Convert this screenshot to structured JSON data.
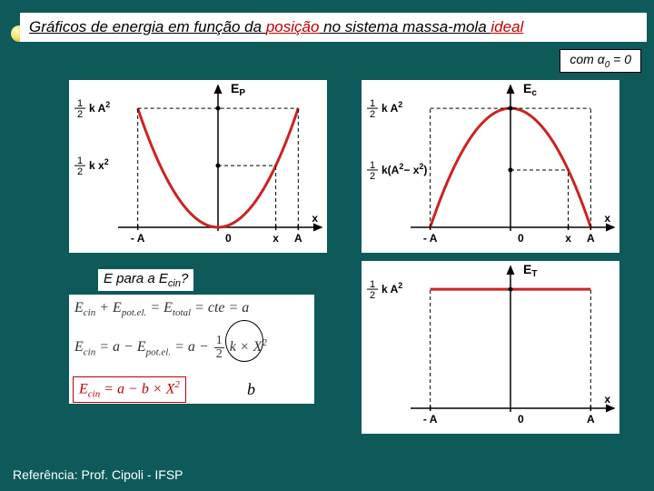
{
  "title": {
    "prefix": "Gráficos de energia em função da ",
    "keyword1": "posição",
    "mid": " no sistema massa-mola ",
    "keyword2": "ideal"
  },
  "tag": {
    "pre": "com α",
    "sub": "0",
    "post": " = 0"
  },
  "question": {
    "pre": "E para a E",
    "sub": "cin",
    "post": "?"
  },
  "equations": {
    "line1_lhs": "E",
    "line1_s1": "cin",
    "line1_p1": " + E",
    "line1_s2": "pot.el.",
    "line1_p2": " = E",
    "line1_s3": "total",
    "line1_p3": " = cte = a",
    "line2_lhs": "E",
    "line2_s1": "cin",
    "line2_p1": " = a − E",
    "line2_s2": "pot.el.",
    "line2_p2": " = a − ",
    "line2_frac_n": "1",
    "line2_frac_d": "2",
    "line2_tail": " k × X",
    "line2_exp": "2",
    "line3_lhs": "E",
    "line3_s1": "cin",
    "line3_p1": " = a − b × X",
    "line3_exp": "2"
  },
  "b_label": "b",
  "reference": "Referência: Prof. Cipoli - IFSP",
  "charts": {
    "ep": {
      "type": "parabola-up",
      "title": "E",
      "title_sub": "P",
      "curve_color": "#cc2222",
      "curve_width": 3,
      "axis_color": "#000000",
      "bg": "#ffffff",
      "x_range": [
        -1.2,
        1.2
      ],
      "y_range": [
        0,
        1.1
      ],
      "A": 1.0,
      "x_mark": 0.72,
      "y_labels": {
        "full": {
          "pre": "1",
          "den": "2",
          "post": "k A",
          "exp": "2"
        },
        "partial": {
          "pre": "1",
          "den": "2",
          "post": "k x",
          "exp": "2"
        }
      },
      "x_labels": {
        "negA": "- A",
        "zero": "0",
        "x": "x",
        "A": "A",
        "axis": "x"
      },
      "tick_font": 12
    },
    "ec": {
      "type": "parabola-down",
      "title": "E",
      "title_sub": "c",
      "curve_color": "#cc2222",
      "curve_width": 3,
      "axis_color": "#000000",
      "bg": "#ffffff",
      "x_range": [
        -1.2,
        1.2
      ],
      "y_range": [
        0,
        1.1
      ],
      "A": 1.0,
      "x_mark": 0.72,
      "y_labels": {
        "full": {
          "pre": "1",
          "den": "2",
          "post": "k A",
          "exp": "2"
        },
        "partial": {
          "pre": "1",
          "den": "2",
          "post": "k(A",
          "exp": "2",
          "mid": "− x",
          "exp2": "2",
          "end": ")"
        }
      },
      "x_labels": {
        "negA": "- A",
        "zero": "0",
        "x": "x",
        "A": "A",
        "axis": "x"
      },
      "tick_font": 12
    },
    "et": {
      "type": "constant",
      "title": "E",
      "title_sub": "T",
      "line_color": "#cc2222",
      "line_width": 3,
      "axis_color": "#000000",
      "bg": "#ffffff",
      "x_range": [
        -1.2,
        1.2
      ],
      "y_range": [
        0,
        1.1
      ],
      "A": 1.0,
      "const_value": 1.0,
      "y_labels": {
        "full": {
          "pre": "1",
          "den": "2",
          "post": "k A",
          "exp": "2"
        }
      },
      "x_labels": {
        "negA": "- A",
        "zero": "0",
        "A": "A",
        "axis": "x"
      },
      "tick_font": 12
    }
  }
}
